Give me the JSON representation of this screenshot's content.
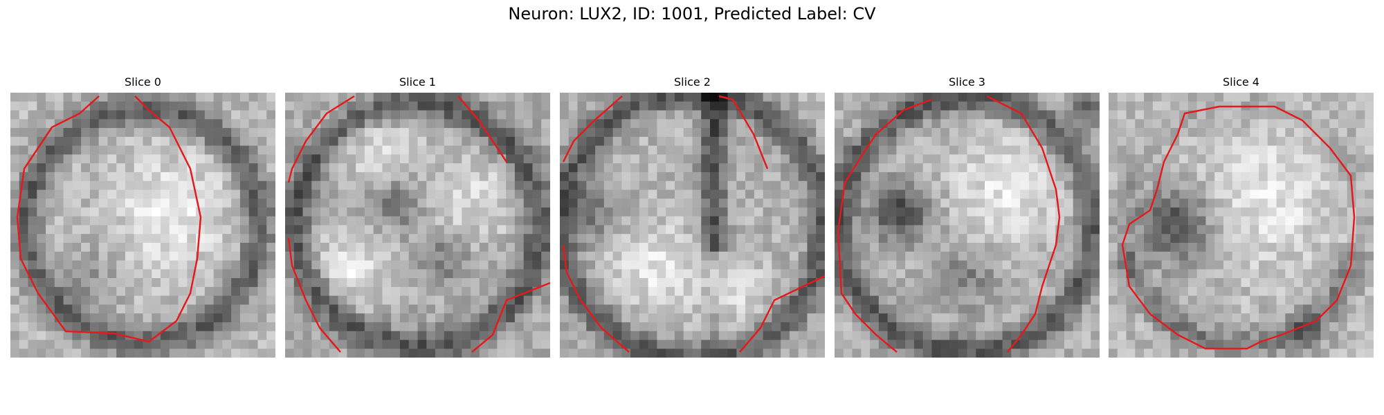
{
  "figure": {
    "title": "Neuron: LUX2, ID: 1001, Predicted Label: CV"
  },
  "panels": [
    {
      "title": "Slice 0",
      "seed": 11,
      "pattern": "blob-bright-center",
      "contour_color": "#e41a1c"
    },
    {
      "title": "Slice 1",
      "seed": 23,
      "pattern": "lobes-dark-cross",
      "contour_color": "#e41a1c"
    },
    {
      "title": "Slice 2",
      "seed": 37,
      "pattern": "dark-vertical-stripe",
      "contour_color": "#e41a1c"
    },
    {
      "title": "Slice 3",
      "seed": 49,
      "pattern": "dark-left-band",
      "contour_color": "#e41a1c"
    },
    {
      "title": "Slice 4",
      "seed": 61,
      "pattern": "dark-left-crescent",
      "contour_color": "#e41a1c"
    }
  ],
  "grid_size": 30
}
